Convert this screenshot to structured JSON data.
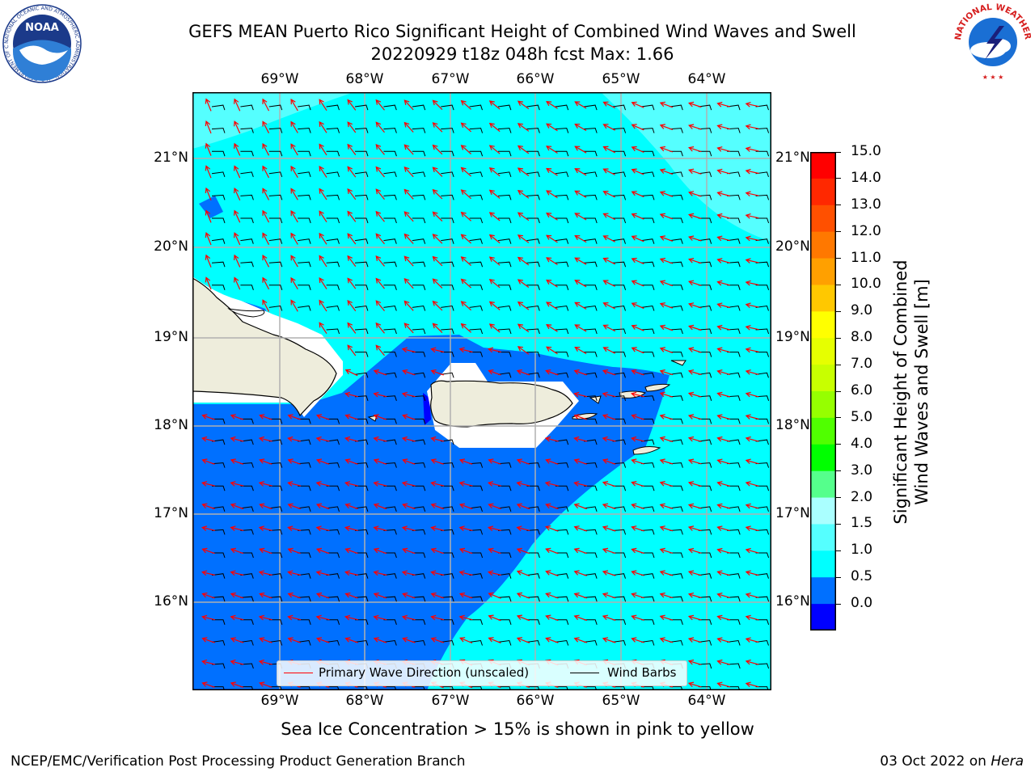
{
  "header": {
    "title_line1": "GEFS MEAN Puerto Rico Significant Height of Combined Wind Waves and Swell",
    "title_line2": "20220929 t18z 048h fcst   Max: 1.66"
  },
  "logos": {
    "noaa_text": "NOAA",
    "noaa_ring_text": "NATIONAL OCEANIC AND ATMOSPHERIC ADMINISTRATION · U.S. DEPARTMENT OF COMMERCE",
    "nws_ring_text": "NATIONAL WEATHER SERVICE"
  },
  "map": {
    "lon_labels": [
      "69°W",
      "68°W",
      "67°W",
      "66°W",
      "65°W",
      "64°W"
    ],
    "lat_labels": [
      "21°N",
      "20°N",
      "19°N",
      "18°N",
      "17°N",
      "16°N"
    ],
    "legend": {
      "primary_wave": "Primary Wave Direction (unscaled)",
      "wind_barbs": "Wind Barbs"
    },
    "colors": {
      "land": "#eeeddc",
      "band_0_0_5": "#0000ff",
      "band_0_5_1": "#0070ff",
      "band_1_1_5": "#00ffff",
      "band_1_5_2": "#55ffff",
      "band_2_3": "#aaffff",
      "arrow": "#ff0000",
      "barb": "#000000"
    }
  },
  "colorbar": {
    "label": [
      "Significant Height of Combined",
      "Wind Waves and Swell [m]"
    ],
    "ticks": [
      "15.0",
      "14.0",
      "13.0",
      "12.0",
      "11.0",
      "10.0",
      "9.0",
      "8.0",
      "7.0",
      "6.0",
      "5.0",
      "4.0",
      "3.0",
      "2.0",
      "1.5",
      "1.0",
      "0.5",
      "0.0"
    ],
    "colors_top_to_bottom": [
      "#ff0000",
      "#ff2800",
      "#ff5000",
      "#ff7800",
      "#ffa000",
      "#ffc800",
      "#ffff00",
      "#e6ff00",
      "#c8ff00",
      "#96ff00",
      "#50ff00",
      "#00ff00",
      "#55ff8c",
      "#aaffff",
      "#55ffff",
      "#00ffff",
      "#0070ff",
      "#0000ff"
    ]
  },
  "subtitle": "Sea Ice Concentration > 15% is shown in pink to yellow",
  "footer": {
    "left": "NCEP/EMC/Verification Post Processing Product Generation Branch",
    "right_date": "03 Oct 2022 on ",
    "right_host": "Hera"
  }
}
